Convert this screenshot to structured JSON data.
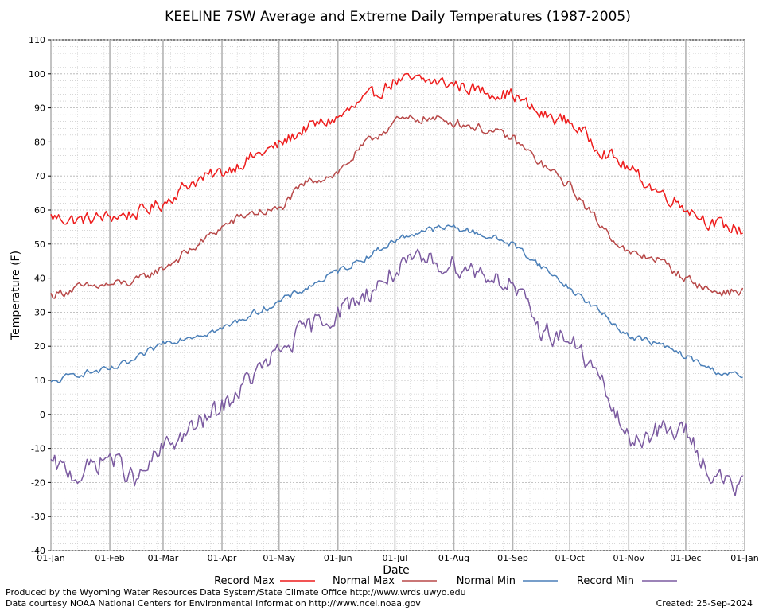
{
  "chart_data": {
    "type": "line",
    "title": "KEELINE 7SW Average and Extreme Daily Temperatures (1987-2005)",
    "xlabel": "Date",
    "ylabel": "Temperature (F)",
    "ylim": [
      -40,
      110
    ],
    "yticks": [
      -40,
      -30,
      -20,
      -10,
      0,
      10,
      20,
      30,
      40,
      50,
      60,
      70,
      80,
      90,
      100,
      110
    ],
    "xlim": [
      "01-Jan",
      "01-Jan"
    ],
    "xticks": [
      {
        "label": "01-Jan",
        "day": 0
      },
      {
        "label": "01-Feb",
        "day": 31
      },
      {
        "label": "01-Mar",
        "day": 59
      },
      {
        "label": "01-Apr",
        "day": 90
      },
      {
        "label": "01-May",
        "day": 120
      },
      {
        "label": "01-Jun",
        "day": 151
      },
      {
        "label": "01-Jul",
        "day": 181
      },
      {
        "label": "01-Aug",
        "day": 212
      },
      {
        "label": "01-Sep",
        "day": 243
      },
      {
        "label": "01-Oct",
        "day": 273
      },
      {
        "label": "01-Nov",
        "day": 304
      },
      {
        "label": "01-Dec",
        "day": 334
      },
      {
        "label": "01-Jan",
        "day": 365
      }
    ],
    "grid": true,
    "legend_position": "bottom",
    "series": [
      {
        "name": "Record Max",
        "color": "#ee1c1c",
        "x_dates": [
          "01-Jan",
          "15-Jan",
          "01-Feb",
          "15-Feb",
          "01-Mar",
          "15-Mar",
          "01-Apr",
          "15-Apr",
          "01-May",
          "15-May",
          "01-Jun",
          "15-Jun",
          "01-Jul",
          "15-Jul",
          "01-Aug",
          "15-Aug",
          "01-Sep",
          "15-Sep",
          "01-Oct",
          "15-Oct",
          "01-Nov",
          "15-Nov",
          "01-Dec",
          "15-Dec",
          "31-Dec"
        ],
        "values": [
          58,
          57,
          58,
          59,
          62,
          68,
          71,
          75,
          79,
          84,
          87,
          92,
          98,
          98,
          97,
          95,
          94,
          88,
          86,
          79,
          72,
          66,
          61,
          56,
          54
        ]
      },
      {
        "name": "Normal Max",
        "color": "#b84848",
        "x_dates": [
          "01-Jan",
          "15-Jan",
          "01-Feb",
          "15-Feb",
          "01-Mar",
          "15-Mar",
          "01-Apr",
          "15-Apr",
          "01-May",
          "15-May",
          "01-Jun",
          "15-Jun",
          "01-Jul",
          "15-Jul",
          "01-Aug",
          "15-Aug",
          "01-Sep",
          "15-Sep",
          "01-Oct",
          "15-Oct",
          "01-Nov",
          "15-Nov",
          "01-Dec",
          "15-Dec",
          "31-Dec"
        ],
        "values": [
          35,
          37,
          38,
          39,
          43,
          48,
          55,
          59,
          60,
          68,
          71,
          79,
          86,
          87,
          86,
          84,
          81,
          74,
          67,
          57,
          47,
          46,
          40,
          36,
          36
        ]
      },
      {
        "name": "Normal Min",
        "color": "#4a7fb8",
        "x_dates": [
          "01-Jan",
          "15-Jan",
          "01-Feb",
          "15-Feb",
          "01-Mar",
          "15-Mar",
          "01-Apr",
          "15-Apr",
          "01-May",
          "15-May",
          "01-Jun",
          "15-Jun",
          "01-Jul",
          "15-Jul",
          "01-Aug",
          "15-Aug",
          "01-Sep",
          "15-Sep",
          "01-Oct",
          "15-Oct",
          "01-Nov",
          "15-Nov",
          "01-Dec",
          "15-Dec",
          "31-Dec"
        ],
        "values": [
          9,
          12,
          13,
          16,
          21,
          23,
          25,
          29,
          33,
          37,
          42,
          46,
          51,
          54,
          55,
          53,
          50,
          44,
          37,
          31,
          23,
          21,
          17,
          13,
          11
        ]
      },
      {
        "name": "Record Min",
        "color": "#7b5aa0",
        "x_dates": [
          "01-Jan",
          "15-Jan",
          "01-Feb",
          "15-Feb",
          "01-Mar",
          "15-Mar",
          "01-Apr",
          "15-Apr",
          "01-May",
          "15-May",
          "01-Jun",
          "15-Jun",
          "01-Jul",
          "15-Jul",
          "01-Aug",
          "15-Aug",
          "01-Sep",
          "15-Sep",
          "01-Oct",
          "15-Oct",
          "01-Nov",
          "15-Nov",
          "01-Dec",
          "15-Dec",
          "31-Dec"
        ],
        "values": [
          -15,
          -18,
          -12,
          -20,
          -10,
          -5,
          2,
          10,
          18,
          25,
          30,
          35,
          42,
          45,
          44,
          42,
          38,
          25,
          22,
          12,
          -8,
          -5,
          -5,
          -18,
          -22
        ]
      }
    ]
  },
  "footer": {
    "produced_by": "Produced by the Wyoming Water Resources Data System/State Climate Office http://www.wrds.uwyo.edu",
    "data_courtesy": "Data courtesy NOAA National Centers for Environmental Information http://www.ncei.noaa.gov",
    "created": "Created:  25-Sep-2024"
  }
}
